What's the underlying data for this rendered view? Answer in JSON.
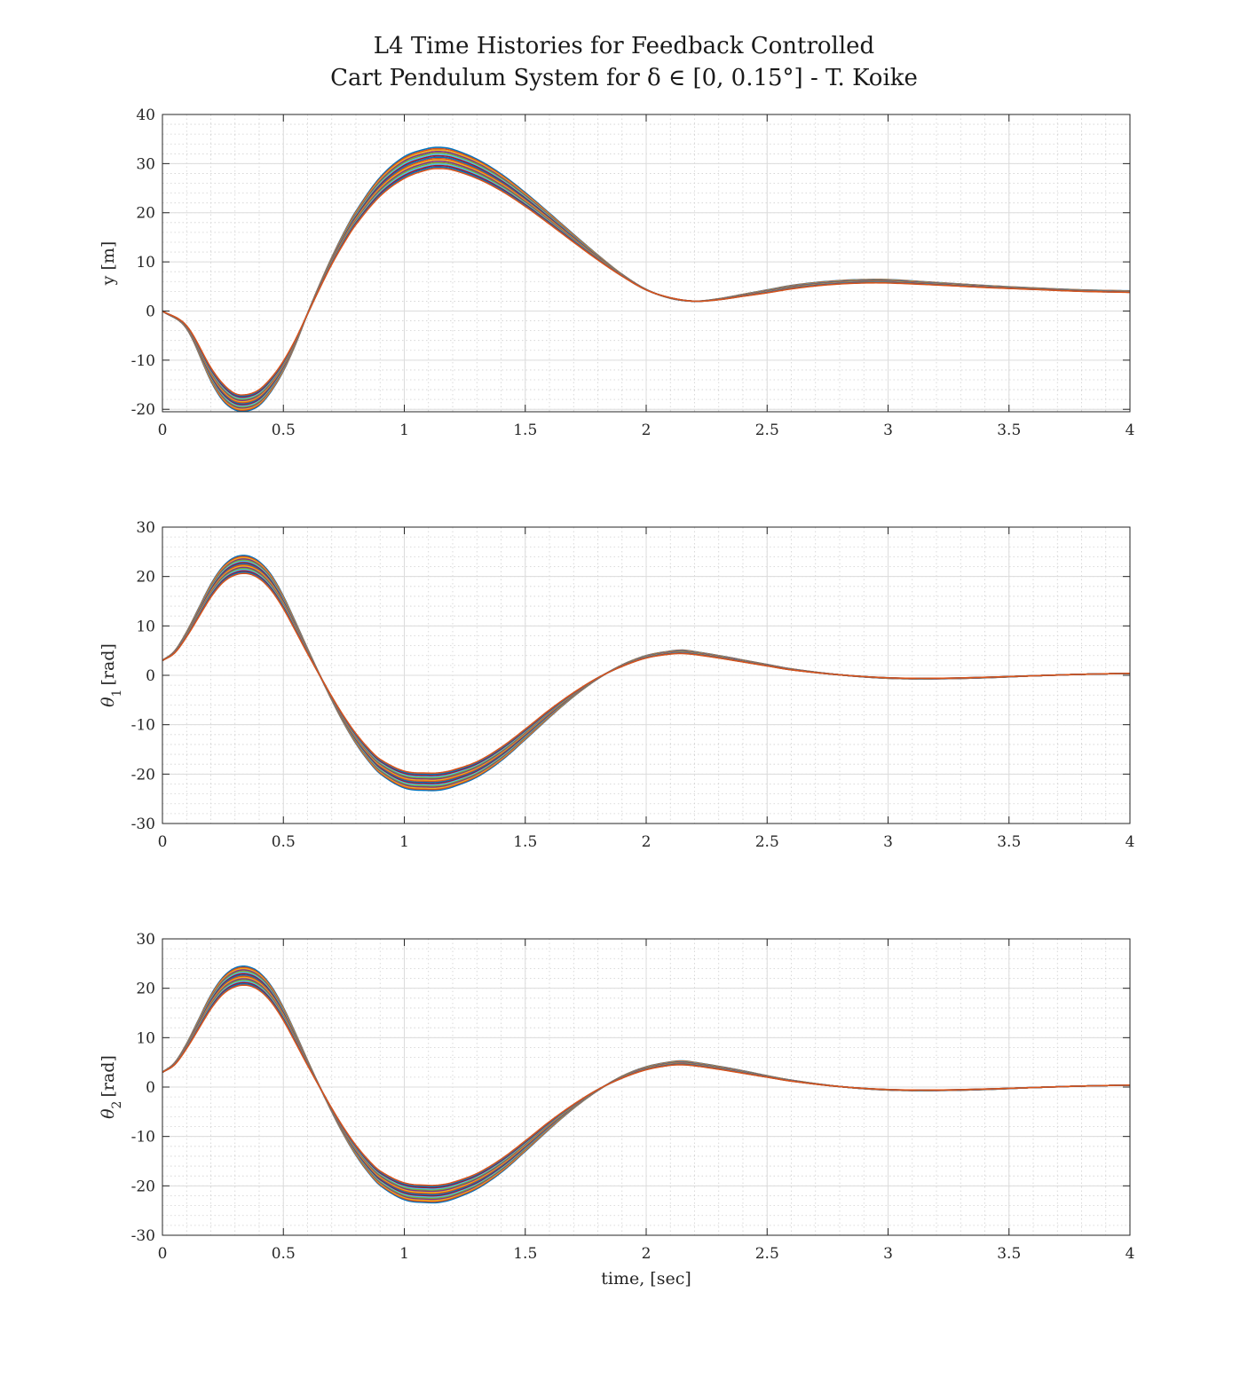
{
  "figure": {
    "title_line1": "L4 Time Histories for Feedback Controlled",
    "title_line2": "Cart Pendulum System for δ ∈ [0, 0.15°] - T. Koike"
  },
  "series_colors": [
    "#0072BD",
    "#D95319",
    "#EDB120",
    "#7E2F8E",
    "#77AC30",
    "#4DBEEE",
    "#A2142F"
  ],
  "chart_data": [
    {
      "type": "line",
      "panel": "top",
      "title": "",
      "xlabel": "",
      "ylabel": "y [m]",
      "xlim": [
        0,
        4
      ],
      "ylim": [
        -20.5,
        40
      ],
      "xticks": [
        0,
        0.5,
        1,
        1.5,
        2,
        2.5,
        3,
        3.5,
        4
      ],
      "yticks": [
        -20,
        -10,
        0,
        10,
        20,
        30,
        40
      ],
      "xtick_labels": [
        "0",
        "0.5",
        "1",
        "1.5",
        "2",
        "2.5",
        "3",
        "3.5",
        "4"
      ],
      "ytick_labels": [
        "-20",
        "-10",
        "0",
        "10",
        "20",
        "30",
        "40"
      ],
      "grid": true,
      "minor_grid": true,
      "band_count": 16,
      "envelope_lower": {
        "x": [
          0,
          0.1,
          0.2,
          0.25,
          0.3,
          0.35,
          0.4,
          0.45,
          0.5,
          0.55,
          0.6,
          0.65,
          0.7,
          0.75,
          0.8,
          0.9,
          1.0,
          1.1,
          1.15,
          1.2,
          1.3,
          1.4,
          1.5,
          1.6,
          1.7,
          1.8,
          1.9,
          2.0,
          2.1,
          2.2,
          2.3,
          2.4,
          2.5,
          2.6,
          2.7,
          2.8,
          2.9,
          3.0,
          3.2,
          3.4,
          3.6,
          3.8,
          4.0
        ],
        "y": [
          0,
          -3,
          -11.5,
          -14.8,
          -16.8,
          -17.0,
          -16.0,
          -13.6,
          -10.2,
          -5.8,
          -0.6,
          4.6,
          9.5,
          13.8,
          17.6,
          23.4,
          27.0,
          28.8,
          29.0,
          28.7,
          27.0,
          24.5,
          21.3,
          17.7,
          14.0,
          10.4,
          7.1,
          4.3,
          2.7,
          2.0,
          2.3,
          3.0,
          3.7,
          4.5,
          5.1,
          5.5,
          5.7,
          5.7,
          5.3,
          4.8,
          4.4,
          4.0,
          3.8
        ]
      },
      "envelope_upper": {
        "x": [
          0,
          0.1,
          0.2,
          0.25,
          0.3,
          0.35,
          0.4,
          0.45,
          0.5,
          0.55,
          0.6,
          0.65,
          0.7,
          0.75,
          0.8,
          0.9,
          1.0,
          1.1,
          1.15,
          1.2,
          1.3,
          1.4,
          1.5,
          1.6,
          1.7,
          1.8,
          1.9,
          2.0,
          2.1,
          2.2,
          2.3,
          2.4,
          2.5,
          2.6,
          2.7,
          2.8,
          2.9,
          3.0,
          3.2,
          3.4,
          3.6,
          3.8,
          4.0
        ],
        "y": [
          0,
          -3.6,
          -14.2,
          -18.2,
          -20.1,
          -20.3,
          -19.2,
          -16.3,
          -12.2,
          -6.8,
          -0.5,
          5.4,
          10.9,
          15.9,
          20.3,
          27.2,
          31.4,
          33.1,
          33.3,
          32.9,
          30.9,
          27.9,
          24.1,
          19.9,
          15.6,
          11.4,
          7.5,
          4.4,
          2.6,
          2.0,
          2.5,
          3.4,
          4.3,
          5.2,
          5.8,
          6.2,
          6.4,
          6.4,
          5.8,
          5.2,
          4.7,
          4.3,
          4.1
        ]
      }
    },
    {
      "type": "line",
      "panel": "middle",
      "title": "",
      "xlabel": "",
      "ylabel": "θ1 [rad]",
      "ylabel_symbol": "θ",
      "ylabel_subscript": "1",
      "ylabel_unit": "[rad]",
      "xlim": [
        0,
        4
      ],
      "ylim": [
        -30,
        30
      ],
      "xticks": [
        0,
        0.5,
        1,
        1.5,
        2,
        2.5,
        3,
        3.5,
        4
      ],
      "yticks": [
        -30,
        -20,
        -10,
        0,
        10,
        20,
        30
      ],
      "xtick_labels": [
        "0",
        "0.5",
        "1",
        "1.5",
        "2",
        "2.5",
        "3",
        "3.5",
        "4"
      ],
      "ytick_labels": [
        "-30",
        "-20",
        "-10",
        "0",
        "10",
        "20",
        "30"
      ],
      "grid": true,
      "minor_grid": true,
      "band_count": 16,
      "envelope_lower": {
        "x": [
          0,
          0.05,
          0.1,
          0.15,
          0.2,
          0.25,
          0.3,
          0.35,
          0.4,
          0.45,
          0.5,
          0.55,
          0.6,
          0.65,
          0.7,
          0.75,
          0.8,
          0.85,
          0.9,
          1.0,
          1.1,
          1.15,
          1.2,
          1.3,
          1.4,
          1.5,
          1.6,
          1.7,
          1.8,
          1.9,
          2.0,
          2.1,
          2.15,
          2.2,
          2.3,
          2.4,
          2.5,
          2.6,
          2.8,
          3.0,
          3.2,
          3.4,
          3.6,
          3.8,
          4.0
        ],
        "y": [
          3.0,
          4.5,
          7.8,
          11.8,
          15.8,
          18.8,
          20.3,
          20.6,
          19.6,
          17.2,
          13.5,
          9.0,
          4.4,
          0.0,
          -4.3,
          -8.3,
          -11.8,
          -14.7,
          -17.0,
          -19.4,
          -19.8,
          -19.7,
          -19.2,
          -17.5,
          -14.6,
          -10.9,
          -7.0,
          -3.5,
          -0.5,
          1.8,
          3.5,
          4.3,
          4.4,
          4.2,
          3.5,
          2.7,
          1.9,
          1.1,
          0.1,
          -0.5,
          -0.6,
          -0.4,
          -0.1,
          0.2,
          0.4
        ]
      },
      "envelope_upper": {
        "x": [
          0,
          0.05,
          0.1,
          0.15,
          0.2,
          0.25,
          0.3,
          0.35,
          0.4,
          0.45,
          0.5,
          0.55,
          0.6,
          0.65,
          0.7,
          0.75,
          0.8,
          0.85,
          0.9,
          1.0,
          1.1,
          1.15,
          1.2,
          1.3,
          1.4,
          1.5,
          1.6,
          1.7,
          1.8,
          1.9,
          2.0,
          2.1,
          2.15,
          2.2,
          2.3,
          2.4,
          2.5,
          2.6,
          2.8,
          3.0,
          3.2,
          3.4,
          3.6,
          3.8,
          4.0
        ],
        "y": [
          3.0,
          4.9,
          8.8,
          13.6,
          18.4,
          22.0,
          23.9,
          24.2,
          23.0,
          20.3,
          16.0,
          10.8,
          5.4,
          0.1,
          -5.0,
          -9.7,
          -13.8,
          -17.2,
          -19.9,
          -22.8,
          -23.3,
          -23.2,
          -22.6,
          -20.6,
          -17.3,
          -13.0,
          -8.5,
          -4.3,
          -0.7,
          2.1,
          4.0,
          4.9,
          5.1,
          4.8,
          4.0,
          3.1,
          2.2,
          1.3,
          0.1,
          -0.6,
          -0.7,
          -0.5,
          -0.1,
          0.2,
          0.4
        ]
      }
    },
    {
      "type": "line",
      "panel": "bottom",
      "title": "",
      "xlabel": "time, [sec]",
      "ylabel": "θ2 [rad]",
      "ylabel_symbol": "θ",
      "ylabel_subscript": "2",
      "ylabel_unit": "[rad]",
      "xlim": [
        0,
        4
      ],
      "ylim": [
        -30,
        30
      ],
      "xticks": [
        0,
        0.5,
        1,
        1.5,
        2,
        2.5,
        3,
        3.5,
        4
      ],
      "yticks": [
        -30,
        -20,
        -10,
        0,
        10,
        20,
        30
      ],
      "xtick_labels": [
        "0",
        "0.5",
        "1",
        "1.5",
        "2",
        "2.5",
        "3",
        "3.5",
        "4"
      ],
      "ytick_labels": [
        "-30",
        "-20",
        "-10",
        "0",
        "10",
        "20",
        "30"
      ],
      "grid": true,
      "minor_grid": true,
      "band_count": 16,
      "envelope_lower": {
        "x": [
          0,
          0.05,
          0.1,
          0.15,
          0.2,
          0.25,
          0.3,
          0.35,
          0.4,
          0.45,
          0.5,
          0.55,
          0.6,
          0.65,
          0.7,
          0.75,
          0.8,
          0.85,
          0.9,
          1.0,
          1.1,
          1.15,
          1.2,
          1.3,
          1.4,
          1.5,
          1.6,
          1.7,
          1.8,
          1.9,
          2.0,
          2.1,
          2.15,
          2.2,
          2.3,
          2.4,
          2.5,
          2.6,
          2.8,
          3.0,
          3.2,
          3.4,
          3.6,
          3.8,
          4.0
        ],
        "y": [
          3.0,
          4.5,
          7.8,
          11.8,
          15.8,
          18.8,
          20.3,
          20.6,
          19.6,
          17.2,
          13.5,
          9.0,
          4.4,
          0.0,
          -4.3,
          -8.3,
          -11.8,
          -14.7,
          -17.0,
          -19.4,
          -19.9,
          -19.8,
          -19.3,
          -17.5,
          -14.6,
          -10.9,
          -7.0,
          -3.5,
          -0.5,
          1.8,
          3.5,
          4.4,
          4.5,
          4.3,
          3.6,
          2.8,
          2.0,
          1.2,
          0.1,
          -0.5,
          -0.6,
          -0.4,
          -0.1,
          0.2,
          0.4
        ]
      },
      "envelope_upper": {
        "x": [
          0,
          0.05,
          0.1,
          0.15,
          0.2,
          0.25,
          0.3,
          0.35,
          0.4,
          0.45,
          0.5,
          0.55,
          0.6,
          0.65,
          0.7,
          0.75,
          0.8,
          0.85,
          0.9,
          1.0,
          1.1,
          1.15,
          1.2,
          1.3,
          1.4,
          1.5,
          1.6,
          1.7,
          1.8,
          1.9,
          2.0,
          2.1,
          2.15,
          2.2,
          2.3,
          2.4,
          2.5,
          2.6,
          2.8,
          3.0,
          3.2,
          3.4,
          3.6,
          3.8,
          4.0
        ],
        "y": [
          3.0,
          4.9,
          8.8,
          13.7,
          18.6,
          22.2,
          24.1,
          24.4,
          23.2,
          20.4,
          16.1,
          10.9,
          5.4,
          0.1,
          -5.0,
          -9.7,
          -13.8,
          -17.2,
          -19.9,
          -22.8,
          -23.4,
          -23.3,
          -22.7,
          -20.6,
          -17.3,
          -13.0,
          -8.5,
          -4.3,
          -0.7,
          2.2,
          4.1,
          5.1,
          5.3,
          5.0,
          4.2,
          3.3,
          2.3,
          1.4,
          0.1,
          -0.6,
          -0.7,
          -0.5,
          -0.1,
          0.2,
          0.4
        ]
      }
    }
  ]
}
